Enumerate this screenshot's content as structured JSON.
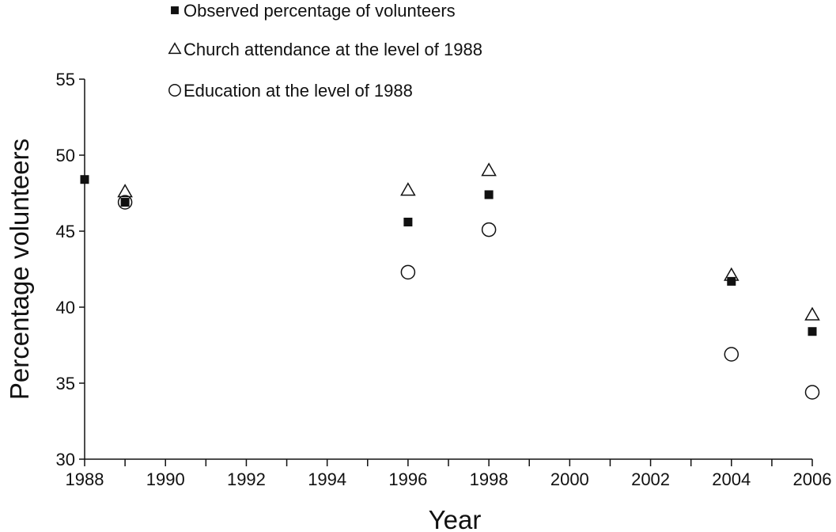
{
  "chart_data": {
    "type": "scatter",
    "title": "",
    "xlabel": "Year",
    "ylabel": "Percentage volunteers",
    "xlim": [
      1988,
      2006
    ],
    "ylim": [
      30,
      55
    ],
    "x_ticks": [
      "1988",
      "1990",
      "1992",
      "1994",
      "1996",
      "1998",
      "2000",
      "2002",
      "2004",
      "2006"
    ],
    "y_ticks": [
      "30",
      "35",
      "40",
      "45",
      "50",
      "55"
    ],
    "grid": false,
    "legend_position": "top",
    "series": [
      {
        "name": "Observed percentage of volunteers",
        "marker": "filled-square",
        "color": "#111111",
        "points": [
          {
            "x": 1988,
            "y": 48.4
          },
          {
            "x": 1989,
            "y": 46.9
          },
          {
            "x": 1996,
            "y": 45.6
          },
          {
            "x": 1998,
            "y": 47.4
          },
          {
            "x": 2004,
            "y": 41.7
          },
          {
            "x": 2006,
            "y": 38.4
          }
        ]
      },
      {
        "name": "Church attendance at the level of 1988",
        "marker": "open-triangle",
        "color": "#111111",
        "points": [
          {
            "x": 1989,
            "y": 47.6
          },
          {
            "x": 1996,
            "y": 47.7
          },
          {
            "x": 1998,
            "y": 49.0
          },
          {
            "x": 2004,
            "y": 42.1
          },
          {
            "x": 2006,
            "y": 39.5
          }
        ]
      },
      {
        "name": "Education at the level of 1988",
        "marker": "open-circle",
        "color": "#111111",
        "points": [
          {
            "x": 1989,
            "y": 46.9
          },
          {
            "x": 1996,
            "y": 42.3
          },
          {
            "x": 1998,
            "y": 45.1
          },
          {
            "x": 2004,
            "y": 36.9
          },
          {
            "x": 2006,
            "y": 34.4
          }
        ]
      }
    ]
  }
}
